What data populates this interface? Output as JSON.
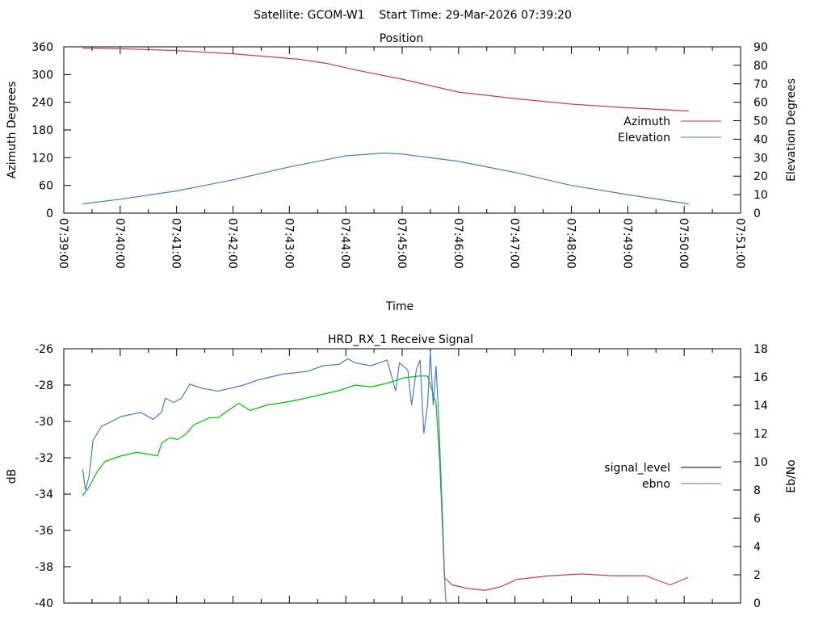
{
  "header": {
    "title": "Satellite: GCOM-W1    Start Time: 29-Mar-2026 07:39:20"
  },
  "chart_data": [
    {
      "type": "line",
      "title": "Position",
      "xlabel": "Time",
      "ylabel": "Azimuth Degrees",
      "y2label": "Elevation Degrees",
      "x_unit": "seconds since 07:39:00",
      "xlim": [
        0,
        720
      ],
      "ylim": [
        0,
        360
      ],
      "y2lim": [
        0,
        90
      ],
      "xticks": [
        "07:39:00",
        "07:40:00",
        "07:41:00",
        "07:42:00",
        "07:43:00",
        "07:44:00",
        "07:45:00",
        "07:46:00",
        "07:47:00",
        "07:48:00",
        "07:49:00",
        "07:50:00",
        "07:51:00"
      ],
      "yticks": [
        "0",
        "60",
        "120",
        "180",
        "240",
        "300",
        "360"
      ],
      "y2ticks": [
        "0",
        "10",
        "20",
        "30",
        "40",
        "50",
        "60",
        "70",
        "80",
        "90"
      ],
      "legend_position": "right",
      "series": [
        {
          "name": "Azimuth",
          "axis": "y",
          "color": "#c04040",
          "x": [
            20,
            60,
            120,
            180,
            250,
            280,
            310,
            360,
            420,
            480,
            540,
            600,
            665
          ],
          "y": [
            357,
            356,
            352,
            345,
            333,
            324,
            310,
            290,
            262,
            248,
            236,
            228,
            221
          ]
        },
        {
          "name": "Elevation",
          "axis": "y2",
          "color": "#4a7ebb",
          "x": [
            20,
            60,
            120,
            180,
            240,
            300,
            340,
            360,
            420,
            480,
            540,
            600,
            665
          ],
          "y": [
            5,
            7.5,
            12,
            18,
            25,
            31,
            32.5,
            32,
            28,
            22,
            15,
            10,
            5
          ]
        }
      ]
    },
    {
      "type": "line",
      "title": "HRD_RX_1 Receive Signal",
      "ylabel": "dB",
      "y2label": "Eb/No",
      "x_unit": "seconds since 07:39:00",
      "xlim": [
        0,
        720
      ],
      "ylim": [
        -40,
        -26
      ],
      "y2lim": [
        0,
        18
      ],
      "yticks": [
        "-40",
        "-38",
        "-36",
        "-34",
        "-32",
        "-30",
        "-28",
        "-26"
      ],
      "y2ticks": [
        "0",
        "2",
        "4",
        "6",
        "8",
        "10",
        "12",
        "14",
        "16",
        "18"
      ],
      "legend_position": "right",
      "series": [
        {
          "name": "signal_level",
          "axis": "y",
          "color": "#000000",
          "good_color": "#00c000",
          "low_color": "#c04040",
          "x": [
            20,
            27,
            35,
            44,
            61,
            78,
            100,
            104,
            113,
            121,
            130,
            138,
            155,
            164,
            186,
            198,
            216,
            241,
            259,
            276,
            293,
            310,
            327,
            344,
            362,
            379,
            387,
            396,
            400,
            403,
            405,
            413,
            430,
            448,
            465,
            482,
            516,
            551,
            585,
            619,
            645,
            664
          ],
          "y": [
            -34.1,
            -33.6,
            -32.8,
            -32.2,
            -31.9,
            -31.7,
            -31.9,
            -31.2,
            -30.9,
            -31.0,
            -30.7,
            -30.2,
            -29.8,
            -29.8,
            -29.0,
            -29.4,
            -29.1,
            -28.9,
            -28.7,
            -28.5,
            -28.3,
            -28.0,
            -28.1,
            -27.9,
            -27.6,
            -27.5,
            -27.5,
            -29.0,
            -32.3,
            -36.0,
            -38.6,
            -39.0,
            -39.2,
            -39.3,
            -39.1,
            -38.7,
            -38.5,
            -38.4,
            -38.5,
            -38.5,
            -39.0,
            -38.6
          ]
        },
        {
          "name": "ebno",
          "axis": "y2",
          "color": "#4a7ebb",
          "x": [
            20,
            23,
            27,
            31,
            40,
            61,
            82,
            95,
            104,
            108,
            117,
            125,
            134,
            147,
            164,
            190,
            207,
            233,
            259,
            276,
            293,
            302,
            310,
            327,
            344,
            353,
            357,
            366,
            370,
            375,
            379,
            383,
            387,
            390,
            393,
            396,
            399,
            400,
            403,
            405,
            406,
            407
          ],
          "y": [
            9.5,
            8,
            9,
            11.5,
            12.5,
            13.2,
            13.5,
            13,
            13.5,
            14.5,
            14.2,
            14.5,
            15.5,
            15.2,
            15,
            15.4,
            15.8,
            16.2,
            16.4,
            16.8,
            16.9,
            17.3,
            17,
            16.8,
            17.2,
            15,
            17,
            16.5,
            14,
            16.5,
            17.2,
            12,
            14,
            17.8,
            14,
            16.8,
            13,
            11,
            6,
            2,
            0.5,
            0
          ]
        }
      ]
    }
  ]
}
